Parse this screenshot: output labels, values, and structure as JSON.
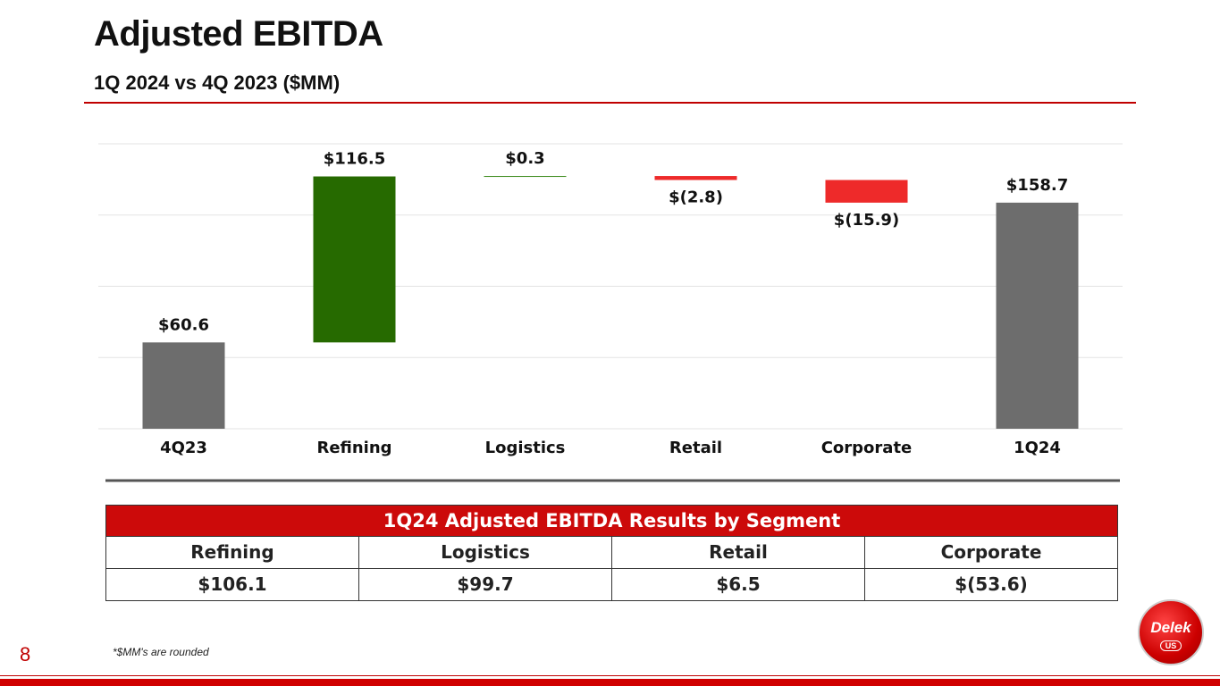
{
  "title": "Adjusted EBITDA",
  "subtitle": "1Q 2024 vs 4Q 2023 ($MM)",
  "chart_data": {
    "type": "waterfall",
    "categories": [
      "4Q23",
      "Refining",
      "Logistics",
      "Retail",
      "Corporate",
      "1Q24"
    ],
    "values": [
      60.6,
      116.5,
      0.3,
      -2.8,
      -15.9,
      158.7
    ],
    "value_labels": [
      "$60.6",
      "$116.5",
      "$0.3",
      "$(2.8)",
      "$(15.9)",
      "$158.7"
    ],
    "colors": [
      "#6d6d6d",
      "#266a00",
      "#3a8a1a",
      "#ee2a2a",
      "#ee2a2a",
      "#6d6d6d"
    ],
    "ylim": [
      0,
      200
    ],
    "yticks": [
      0,
      50,
      100,
      150,
      200
    ],
    "grid": true
  },
  "table": {
    "title": "1Q24 Adjusted EBITDA Results by Segment",
    "header": [
      "Refining",
      "Logistics",
      "Retail",
      "Corporate"
    ],
    "rows": [
      [
        "$106.1",
        "$99.7",
        "$6.5",
        "$(53.6)"
      ]
    ]
  },
  "footnote": "*$MM's are rounded",
  "page_number": "8",
  "logo": {
    "name": "Delek",
    "sub": "US"
  }
}
